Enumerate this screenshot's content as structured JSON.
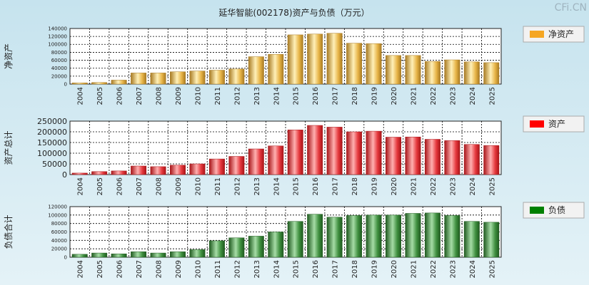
{
  "title": "延华智能(002178)资产与负债（万元）",
  "watermark": "CFi.CN",
  "years": [
    "2004",
    "2005",
    "2006",
    "2007",
    "2008",
    "2009",
    "2010",
    "2011",
    "2012",
    "2013",
    "2014",
    "2015",
    "2016",
    "2017",
    "2018",
    "2019",
    "2020",
    "2021",
    "2022",
    "2023",
    "2024",
    "2025"
  ],
  "chart_data": [
    {
      "type": "bar",
      "id": "net-assets",
      "ylabel": "净资产",
      "legend": "净资产",
      "color": "#f5a623",
      "colors": {
        "dark": "#a87a22",
        "light": "#fff0b8",
        "mid": "#e7b447"
      },
      "ylim": [
        0,
        140000
      ],
      "yticks": [
        0,
        20000,
        40000,
        60000,
        80000,
        100000,
        120000,
        140000
      ],
      "tick_size": "small",
      "values": [
        3000,
        4000,
        10000,
        28000,
        28000,
        31000,
        33000,
        35000,
        38000,
        69000,
        75000,
        124000,
        126000,
        128000,
        103000,
        102000,
        72000,
        72000,
        57000,
        61000,
        56000,
        54000
      ]
    },
    {
      "type": "bar",
      "id": "total-assets",
      "ylabel": "资产总计",
      "legend": "资产",
      "color": "#ff0000",
      "colors": {
        "dark": "#a81418",
        "light": "#ffb0b0",
        "mid": "#e5383d"
      },
      "ylim": [
        0,
        250000
      ],
      "yticks": [
        0,
        50000,
        100000,
        150000,
        200000,
        250000
      ],
      "tick_size": "large",
      "values": [
        7000,
        14000,
        17000,
        40000,
        37000,
        44000,
        50000,
        73000,
        85000,
        120000,
        134000,
        209000,
        230000,
        222000,
        200000,
        203000,
        175000,
        176000,
        165000,
        159000,
        141000,
        136000
      ]
    },
    {
      "type": "bar",
      "id": "total-liabilities",
      "ylabel": "负债合计",
      "legend": "负债",
      "color": "#008000",
      "colors": {
        "dark": "#1f5a1f",
        "light": "#a6dca6",
        "mid": "#3f8f3f"
      },
      "ylim": [
        0,
        120000
      ],
      "yticks": [
        0,
        20000,
        40000,
        60000,
        80000,
        100000,
        120000
      ],
      "tick_size": "small",
      "values": [
        7000,
        10000,
        8000,
        13000,
        10000,
        13000,
        18000,
        39000,
        46000,
        50000,
        60000,
        85000,
        102000,
        95000,
        99000,
        100000,
        100000,
        104000,
        105000,
        99000,
        85000,
        83000
      ]
    }
  ]
}
